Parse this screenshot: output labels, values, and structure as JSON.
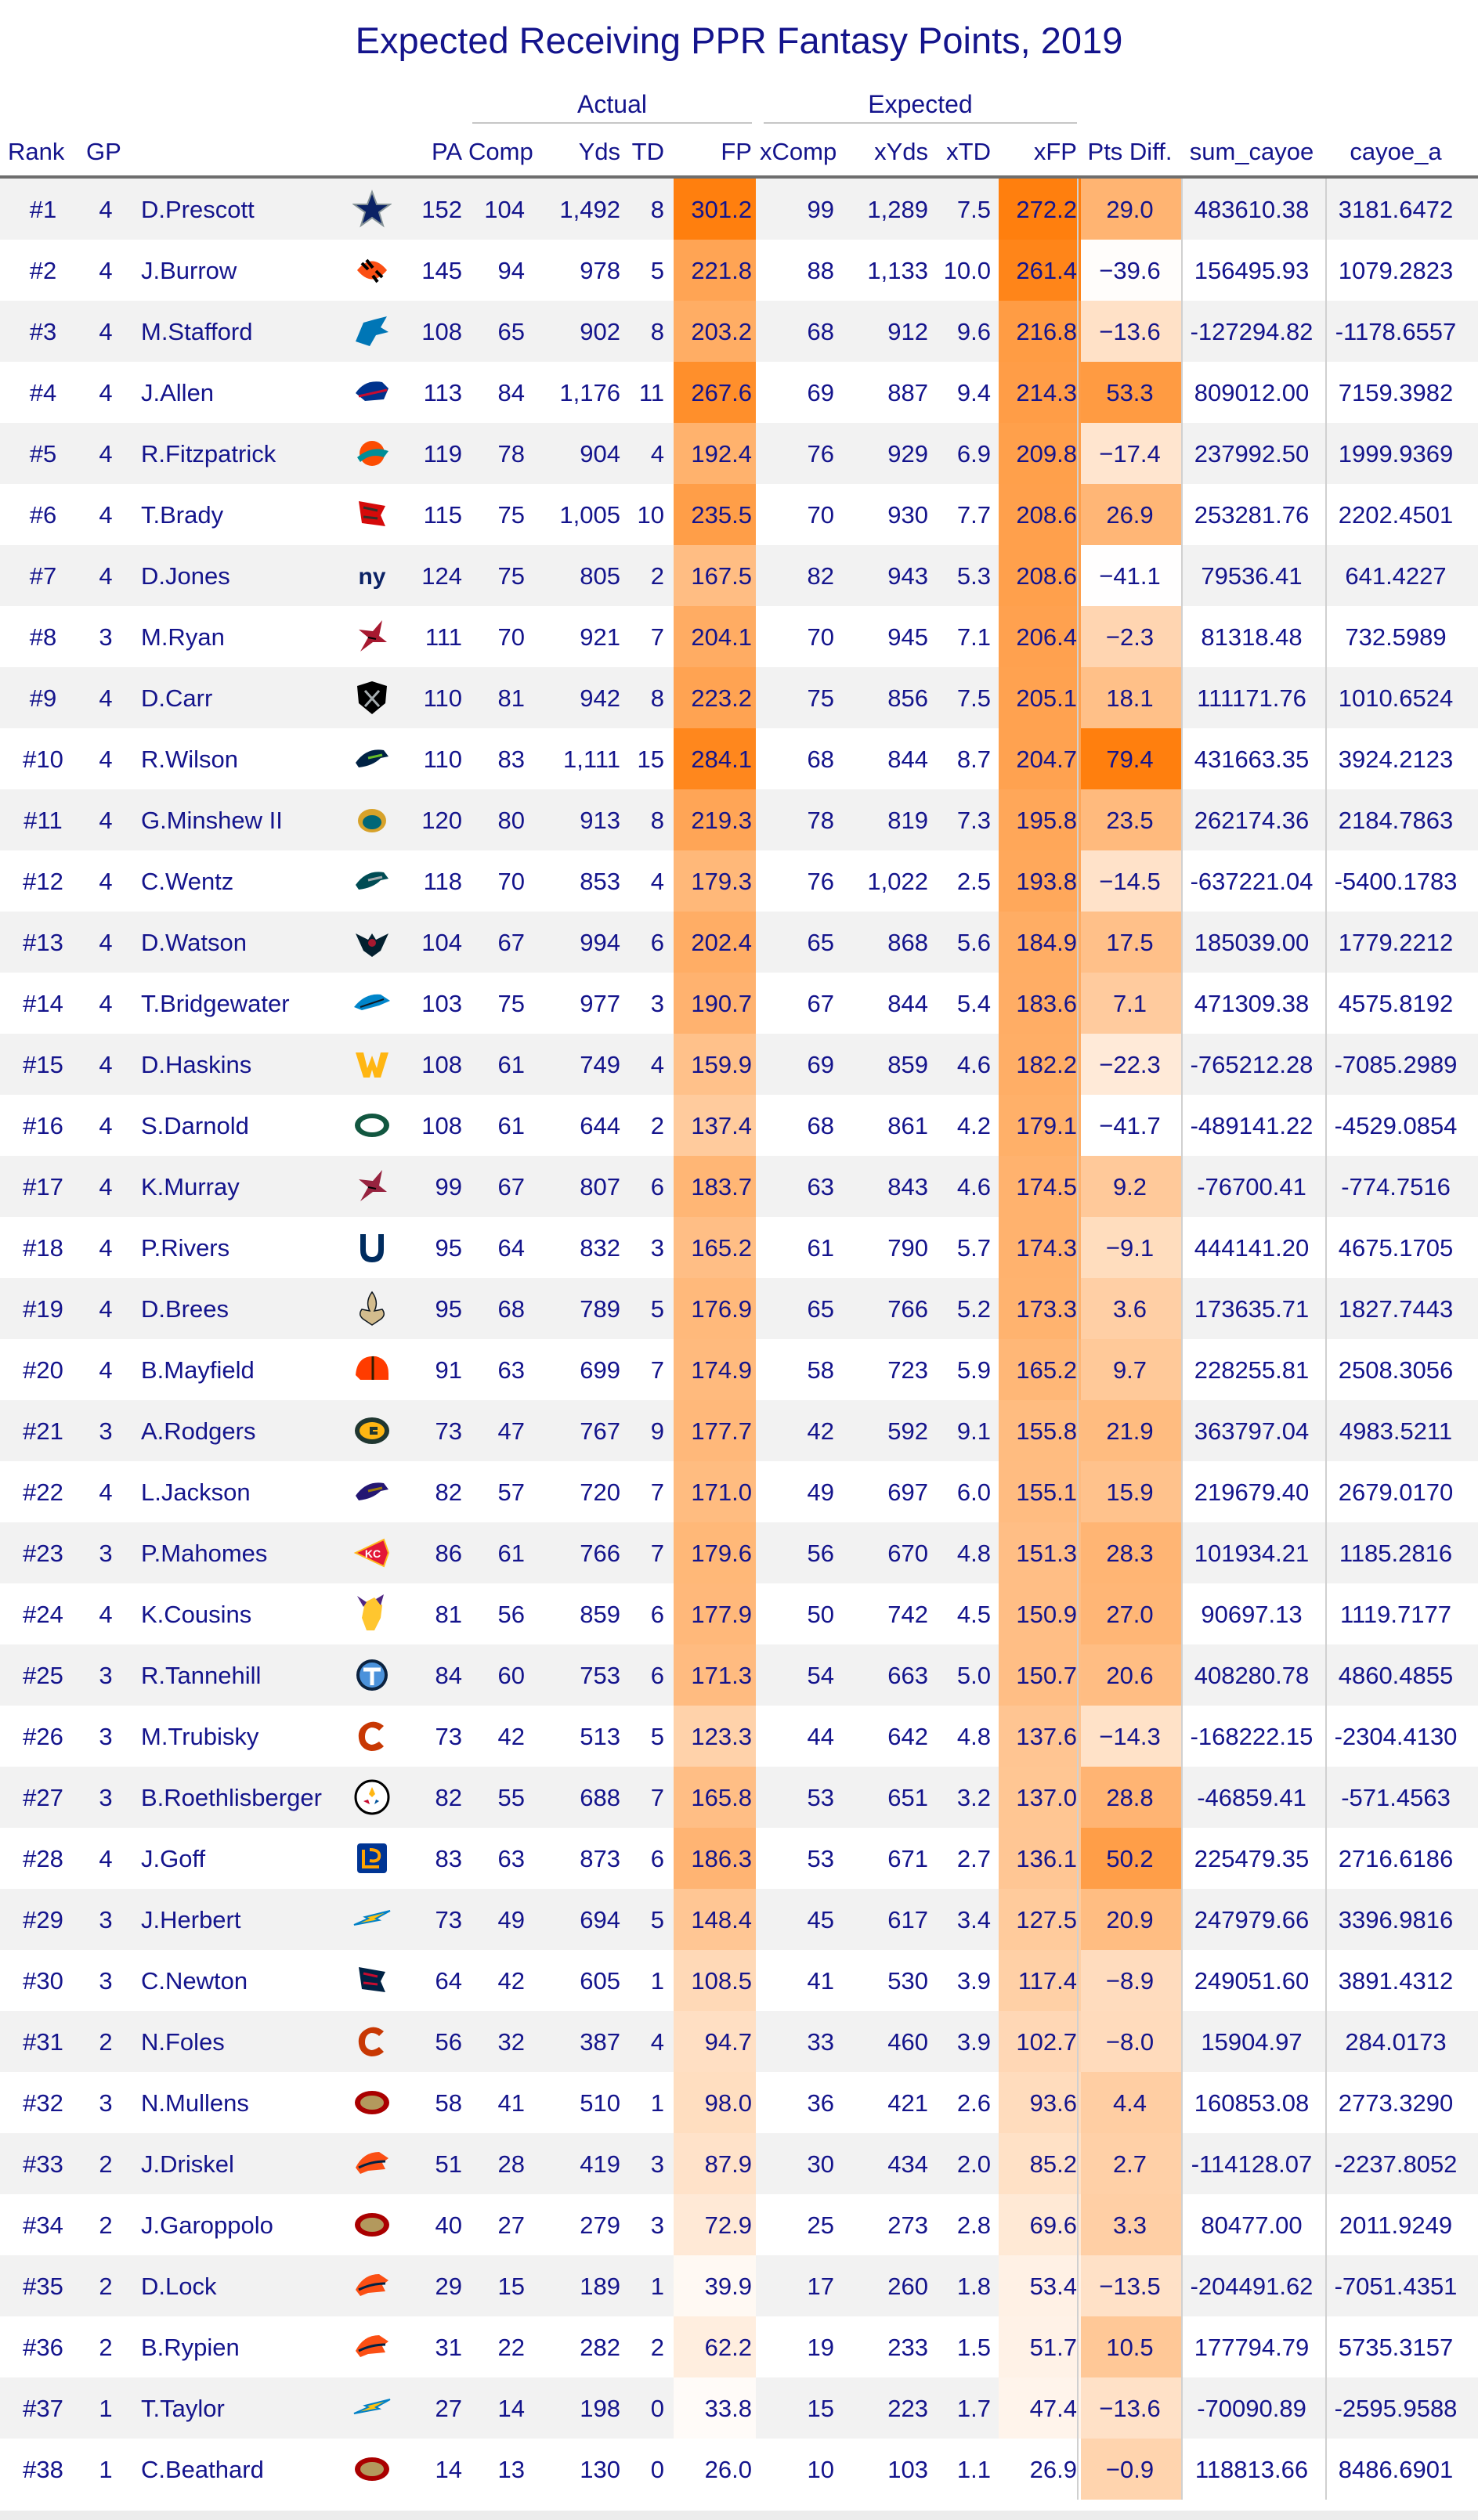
{
  "chart_data": {
    "type": "table",
    "title": "Expected Receiving PPR Fantasy Points, 2019",
    "column_groups": [
      {
        "label": "Actual"
      },
      {
        "label": "Expected"
      }
    ],
    "columns": [
      "Rank",
      "GP",
      "",
      "",
      "PA",
      "Comp",
      "Yds",
      "TD",
      "FP",
      "xComp",
      "xYds",
      "xTD",
      "xFP",
      "Pts Diff.",
      "sum_cayoe",
      "cayoe_a"
    ],
    "heat_colors": {
      "low": "#ffffff",
      "high": "#ff7f0e"
    },
    "rows": [
      {
        "rank": "#1",
        "gp": "4",
        "player": "D.Prescott",
        "team": "DAL",
        "pa": "152",
        "comp": "104",
        "yds": "1,492",
        "td": "8",
        "fp": "301.2",
        "xcomp": "99",
        "xyds": "1,289",
        "xtd": "7.5",
        "xfp": "272.2",
        "diff": "29.0",
        "sum_cayoe": "483610.38",
        "cayoe_a": "3181.6472"
      },
      {
        "rank": "#2",
        "gp": "4",
        "player": "J.Burrow",
        "team": "CIN",
        "pa": "145",
        "comp": "94",
        "yds": "978",
        "td": "5",
        "fp": "221.8",
        "xcomp": "88",
        "xyds": "1,133",
        "xtd": "10.0",
        "xfp": "261.4",
        "diff": "−39.6",
        "sum_cayoe": "156495.93",
        "cayoe_a": "1079.2823"
      },
      {
        "rank": "#3",
        "gp": "4",
        "player": "M.Stafford",
        "team": "DET",
        "pa": "108",
        "comp": "65",
        "yds": "902",
        "td": "8",
        "fp": "203.2",
        "xcomp": "68",
        "xyds": "912",
        "xtd": "9.6",
        "xfp": "216.8",
        "diff": "−13.6",
        "sum_cayoe": "-127294.82",
        "cayoe_a": "-1178.6557"
      },
      {
        "rank": "#4",
        "gp": "4",
        "player": "J.Allen",
        "team": "BUF",
        "pa": "113",
        "comp": "84",
        "yds": "1,176",
        "td": "11",
        "fp": "267.6",
        "xcomp": "69",
        "xyds": "887",
        "xtd": "9.4",
        "xfp": "214.3",
        "diff": "53.3",
        "sum_cayoe": "809012.00",
        "cayoe_a": "7159.3982"
      },
      {
        "rank": "#5",
        "gp": "4",
        "player": "R.Fitzpatrick",
        "team": "MIA",
        "pa": "119",
        "comp": "78",
        "yds": "904",
        "td": "4",
        "fp": "192.4",
        "xcomp": "76",
        "xyds": "929",
        "xtd": "6.9",
        "xfp": "209.8",
        "diff": "−17.4",
        "sum_cayoe": "237992.50",
        "cayoe_a": "1999.9369"
      },
      {
        "rank": "#6",
        "gp": "4",
        "player": "T.Brady",
        "team": "TB",
        "pa": "115",
        "comp": "75",
        "yds": "1,005",
        "td": "10",
        "fp": "235.5",
        "xcomp": "70",
        "xyds": "930",
        "xtd": "7.7",
        "xfp": "208.6",
        "diff": "26.9",
        "sum_cayoe": "253281.76",
        "cayoe_a": "2202.4501"
      },
      {
        "rank": "#7",
        "gp": "4",
        "player": "D.Jones",
        "team": "NYG",
        "pa": "124",
        "comp": "75",
        "yds": "805",
        "td": "2",
        "fp": "167.5",
        "xcomp": "82",
        "xyds": "943",
        "xtd": "5.3",
        "xfp": "208.6",
        "diff": "−41.1",
        "sum_cayoe": "79536.41",
        "cayoe_a": "641.4227"
      },
      {
        "rank": "#8",
        "gp": "3",
        "player": "M.Ryan",
        "team": "ATL",
        "pa": "111",
        "comp": "70",
        "yds": "921",
        "td": "7",
        "fp": "204.1",
        "xcomp": "70",
        "xyds": "945",
        "xtd": "7.1",
        "xfp": "206.4",
        "diff": "−2.3",
        "sum_cayoe": "81318.48",
        "cayoe_a": "732.5989"
      },
      {
        "rank": "#9",
        "gp": "4",
        "player": "D.Carr",
        "team": "LV",
        "pa": "110",
        "comp": "81",
        "yds": "942",
        "td": "8",
        "fp": "223.2",
        "xcomp": "75",
        "xyds": "856",
        "xtd": "7.5",
        "xfp": "205.1",
        "diff": "18.1",
        "sum_cayoe": "111171.76",
        "cayoe_a": "1010.6524"
      },
      {
        "rank": "#10",
        "gp": "4",
        "player": "R.Wilson",
        "team": "SEA",
        "pa": "110",
        "comp": "83",
        "yds": "1,111",
        "td": "15",
        "fp": "284.1",
        "xcomp": "68",
        "xyds": "844",
        "xtd": "8.7",
        "xfp": "204.7",
        "diff": "79.4",
        "sum_cayoe": "431663.35",
        "cayoe_a": "3924.2123"
      },
      {
        "rank": "#11",
        "gp": "4",
        "player": "G.Minshew II",
        "team": "JAX",
        "pa": "120",
        "comp": "80",
        "yds": "913",
        "td": "8",
        "fp": "219.3",
        "xcomp": "78",
        "xyds": "819",
        "xtd": "7.3",
        "xfp": "195.8",
        "diff": "23.5",
        "sum_cayoe": "262174.36",
        "cayoe_a": "2184.7863"
      },
      {
        "rank": "#12",
        "gp": "4",
        "player": "C.Wentz",
        "team": "PHI",
        "pa": "118",
        "comp": "70",
        "yds": "853",
        "td": "4",
        "fp": "179.3",
        "xcomp": "76",
        "xyds": "1,022",
        "xtd": "2.5",
        "xfp": "193.8",
        "diff": "−14.5",
        "sum_cayoe": "-637221.04",
        "cayoe_a": "-5400.1783"
      },
      {
        "rank": "#13",
        "gp": "4",
        "player": "D.Watson",
        "team": "HOU",
        "pa": "104",
        "comp": "67",
        "yds": "994",
        "td": "6",
        "fp": "202.4",
        "xcomp": "65",
        "xyds": "868",
        "xtd": "5.6",
        "xfp": "184.9",
        "diff": "17.5",
        "sum_cayoe": "185039.00",
        "cayoe_a": "1779.2212"
      },
      {
        "rank": "#14",
        "gp": "4",
        "player": "T.Bridgewater",
        "team": "CAR",
        "pa": "103",
        "comp": "75",
        "yds": "977",
        "td": "3",
        "fp": "190.7",
        "xcomp": "67",
        "xyds": "844",
        "xtd": "5.4",
        "xfp": "183.6",
        "diff": "7.1",
        "sum_cayoe": "471309.38",
        "cayoe_a": "4575.8192"
      },
      {
        "rank": "#15",
        "gp": "4",
        "player": "D.Haskins",
        "team": "WAS",
        "pa": "108",
        "comp": "61",
        "yds": "749",
        "td": "4",
        "fp": "159.9",
        "xcomp": "69",
        "xyds": "859",
        "xtd": "4.6",
        "xfp": "182.2",
        "diff": "−22.3",
        "sum_cayoe": "-765212.28",
        "cayoe_a": "-7085.2989"
      },
      {
        "rank": "#16",
        "gp": "4",
        "player": "S.Darnold",
        "team": "NYJ",
        "pa": "108",
        "comp": "61",
        "yds": "644",
        "td": "2",
        "fp": "137.4",
        "xcomp": "68",
        "xyds": "861",
        "xtd": "4.2",
        "xfp": "179.1",
        "diff": "−41.7",
        "sum_cayoe": "-489141.22",
        "cayoe_a": "-4529.0854"
      },
      {
        "rank": "#17",
        "gp": "4",
        "player": "K.Murray",
        "team": "ARI",
        "pa": "99",
        "comp": "67",
        "yds": "807",
        "td": "6",
        "fp": "183.7",
        "xcomp": "63",
        "xyds": "843",
        "xtd": "4.6",
        "xfp": "174.5",
        "diff": "9.2",
        "sum_cayoe": "-76700.41",
        "cayoe_a": "-774.7516"
      },
      {
        "rank": "#18",
        "gp": "4",
        "player": "P.Rivers",
        "team": "IND",
        "pa": "95",
        "comp": "64",
        "yds": "832",
        "td": "3",
        "fp": "165.2",
        "xcomp": "61",
        "xyds": "790",
        "xtd": "5.7",
        "xfp": "174.3",
        "diff": "−9.1",
        "sum_cayoe": "444141.20",
        "cayoe_a": "4675.1705"
      },
      {
        "rank": "#19",
        "gp": "4",
        "player": "D.Brees",
        "team": "NO",
        "pa": "95",
        "comp": "68",
        "yds": "789",
        "td": "5",
        "fp": "176.9",
        "xcomp": "65",
        "xyds": "766",
        "xtd": "5.2",
        "xfp": "173.3",
        "diff": "3.6",
        "sum_cayoe": "173635.71",
        "cayoe_a": "1827.7443"
      },
      {
        "rank": "#20",
        "gp": "4",
        "player": "B.Mayfield",
        "team": "CLE",
        "pa": "91",
        "comp": "63",
        "yds": "699",
        "td": "7",
        "fp": "174.9",
        "xcomp": "58",
        "xyds": "723",
        "xtd": "5.9",
        "xfp": "165.2",
        "diff": "9.7",
        "sum_cayoe": "228255.81",
        "cayoe_a": "2508.3056"
      },
      {
        "rank": "#21",
        "gp": "3",
        "player": "A.Rodgers",
        "team": "GB",
        "pa": "73",
        "comp": "47",
        "yds": "767",
        "td": "9",
        "fp": "177.7",
        "xcomp": "42",
        "xyds": "592",
        "xtd": "9.1",
        "xfp": "155.8",
        "diff": "21.9",
        "sum_cayoe": "363797.04",
        "cayoe_a": "4983.5211"
      },
      {
        "rank": "#22",
        "gp": "4",
        "player": "L.Jackson",
        "team": "BAL",
        "pa": "82",
        "comp": "57",
        "yds": "720",
        "td": "7",
        "fp": "171.0",
        "xcomp": "49",
        "xyds": "697",
        "xtd": "6.0",
        "xfp": "155.1",
        "diff": "15.9",
        "sum_cayoe": "219679.40",
        "cayoe_a": "2679.0170"
      },
      {
        "rank": "#23",
        "gp": "3",
        "player": "P.Mahomes",
        "team": "KC",
        "pa": "86",
        "comp": "61",
        "yds": "766",
        "td": "7",
        "fp": "179.6",
        "xcomp": "56",
        "xyds": "670",
        "xtd": "4.8",
        "xfp": "151.3",
        "diff": "28.3",
        "sum_cayoe": "101934.21",
        "cayoe_a": "1185.2816"
      },
      {
        "rank": "#24",
        "gp": "4",
        "player": "K.Cousins",
        "team": "MIN",
        "pa": "81",
        "comp": "56",
        "yds": "859",
        "td": "6",
        "fp": "177.9",
        "xcomp": "50",
        "xyds": "742",
        "xtd": "4.5",
        "xfp": "150.9",
        "diff": "27.0",
        "sum_cayoe": "90697.13",
        "cayoe_a": "1119.7177"
      },
      {
        "rank": "#25",
        "gp": "3",
        "player": "R.Tannehill",
        "team": "TEN",
        "pa": "84",
        "comp": "60",
        "yds": "753",
        "td": "6",
        "fp": "171.3",
        "xcomp": "54",
        "xyds": "663",
        "xtd": "5.0",
        "xfp": "150.7",
        "diff": "20.6",
        "sum_cayoe": "408280.78",
        "cayoe_a": "4860.4855"
      },
      {
        "rank": "#26",
        "gp": "3",
        "player": "M.Trubisky",
        "team": "CHI",
        "pa": "73",
        "comp": "42",
        "yds": "513",
        "td": "5",
        "fp": "123.3",
        "xcomp": "44",
        "xyds": "642",
        "xtd": "4.8",
        "xfp": "137.6",
        "diff": "−14.3",
        "sum_cayoe": "-168222.15",
        "cayoe_a": "-2304.4130"
      },
      {
        "rank": "#27",
        "gp": "3",
        "player": "B.Roethlisberger",
        "team": "PIT",
        "pa": "82",
        "comp": "55",
        "yds": "688",
        "td": "7",
        "fp": "165.8",
        "xcomp": "53",
        "xyds": "651",
        "xtd": "3.2",
        "xfp": "137.0",
        "diff": "28.8",
        "sum_cayoe": "-46859.41",
        "cayoe_a": "-571.4563"
      },
      {
        "rank": "#28",
        "gp": "4",
        "player": "J.Goff",
        "team": "LAR",
        "pa": "83",
        "comp": "63",
        "yds": "873",
        "td": "6",
        "fp": "186.3",
        "xcomp": "53",
        "xyds": "671",
        "xtd": "2.7",
        "xfp": "136.1",
        "diff": "50.2",
        "sum_cayoe": "225479.35",
        "cayoe_a": "2716.6186"
      },
      {
        "rank": "#29",
        "gp": "3",
        "player": "J.Herbert",
        "team": "LAC",
        "pa": "73",
        "comp": "49",
        "yds": "694",
        "td": "5",
        "fp": "148.4",
        "xcomp": "45",
        "xyds": "617",
        "xtd": "3.4",
        "xfp": "127.5",
        "diff": "20.9",
        "sum_cayoe": "247979.66",
        "cayoe_a": "3396.9816"
      },
      {
        "rank": "#30",
        "gp": "3",
        "player": "C.Newton",
        "team": "NE",
        "pa": "64",
        "comp": "42",
        "yds": "605",
        "td": "1",
        "fp": "108.5",
        "xcomp": "41",
        "xyds": "530",
        "xtd": "3.9",
        "xfp": "117.4",
        "diff": "−8.9",
        "sum_cayoe": "249051.60",
        "cayoe_a": "3891.4312"
      },
      {
        "rank": "#31",
        "gp": "2",
        "player": "N.Foles",
        "team": "CHI",
        "pa": "56",
        "comp": "32",
        "yds": "387",
        "td": "4",
        "fp": "94.7",
        "xcomp": "33",
        "xyds": "460",
        "xtd": "3.9",
        "xfp": "102.7",
        "diff": "−8.0",
        "sum_cayoe": "15904.97",
        "cayoe_a": "284.0173"
      },
      {
        "rank": "#32",
        "gp": "3",
        "player": "N.Mullens",
        "team": "SF",
        "pa": "58",
        "comp": "41",
        "yds": "510",
        "td": "1",
        "fp": "98.0",
        "xcomp": "36",
        "xyds": "421",
        "xtd": "2.6",
        "xfp": "93.6",
        "diff": "4.4",
        "sum_cayoe": "160853.08",
        "cayoe_a": "2773.3290"
      },
      {
        "rank": "#33",
        "gp": "2",
        "player": "J.Driskel",
        "team": "DEN",
        "pa": "51",
        "comp": "28",
        "yds": "419",
        "td": "3",
        "fp": "87.9",
        "xcomp": "30",
        "xyds": "434",
        "xtd": "2.0",
        "xfp": "85.2",
        "diff": "2.7",
        "sum_cayoe": "-114128.07",
        "cayoe_a": "-2237.8052"
      },
      {
        "rank": "#34",
        "gp": "2",
        "player": "J.Garoppolo",
        "team": "SF",
        "pa": "40",
        "comp": "27",
        "yds": "279",
        "td": "3",
        "fp": "72.9",
        "xcomp": "25",
        "xyds": "273",
        "xtd": "2.8",
        "xfp": "69.6",
        "diff": "3.3",
        "sum_cayoe": "80477.00",
        "cayoe_a": "2011.9249"
      },
      {
        "rank": "#35",
        "gp": "2",
        "player": "D.Lock",
        "team": "DEN",
        "pa": "29",
        "comp": "15",
        "yds": "189",
        "td": "1",
        "fp": "39.9",
        "xcomp": "17",
        "xyds": "260",
        "xtd": "1.8",
        "xfp": "53.4",
        "diff": "−13.5",
        "sum_cayoe": "-204491.62",
        "cayoe_a": "-7051.4351"
      },
      {
        "rank": "#36",
        "gp": "2",
        "player": "B.Rypien",
        "team": "DEN",
        "pa": "31",
        "comp": "22",
        "yds": "282",
        "td": "2",
        "fp": "62.2",
        "xcomp": "19",
        "xyds": "233",
        "xtd": "1.5",
        "xfp": "51.7",
        "diff": "10.5",
        "sum_cayoe": "177794.79",
        "cayoe_a": "5735.3157"
      },
      {
        "rank": "#37",
        "gp": "1",
        "player": "T.Taylor",
        "team": "LAC",
        "pa": "27",
        "comp": "14",
        "yds": "198",
        "td": "0",
        "fp": "33.8",
        "xcomp": "15",
        "xyds": "223",
        "xtd": "1.7",
        "xfp": "47.4",
        "diff": "−13.6",
        "sum_cayoe": "-70090.89",
        "cayoe_a": "-2595.9588"
      },
      {
        "rank": "#38",
        "gp": "1",
        "player": "C.Beathard",
        "team": "SF",
        "pa": "14",
        "comp": "13",
        "yds": "130",
        "td": "0",
        "fp": "26.0",
        "xcomp": "10",
        "xyds": "103",
        "xtd": "1.1",
        "xfp": "26.9",
        "diff": "−0.9",
        "sum_cayoe": "118813.66",
        "cayoe_a": "8486.6901"
      }
    ]
  }
}
